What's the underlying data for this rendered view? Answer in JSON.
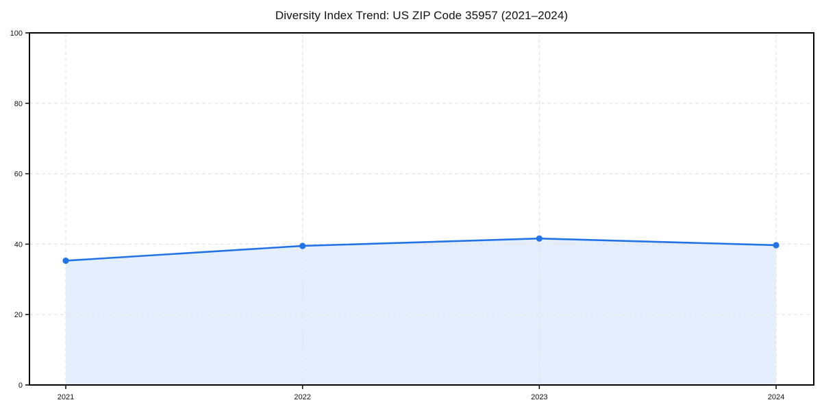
{
  "page": {
    "background": "#ffffff"
  },
  "chart_data": {
    "type": "line",
    "title": "Diversity Index Trend: US ZIP Code 35957 (2021–2024)",
    "categories": [
      "2021",
      "2022",
      "2023",
      "2024"
    ],
    "series": [
      {
        "name": "Diversity Index",
        "values": [
          35.3,
          39.5,
          41.6,
          39.7
        ]
      }
    ],
    "xlabel": "",
    "ylabel": "",
    "ylim": [
      0,
      100
    ],
    "yticks": [
      0,
      20,
      40,
      60,
      80,
      100
    ],
    "grid": "dashed, horizontal and vertical at ticks",
    "legend_position": "none",
    "area_fill": true,
    "colors": {
      "line": "#2273e6",
      "marker": "#2273e6",
      "area_fill": "rgba(34,115,230,0.12)",
      "grid": "#e3e3e3",
      "spine": "#000000",
      "tick_label": "#111111",
      "background": "#ffffff"
    }
  }
}
